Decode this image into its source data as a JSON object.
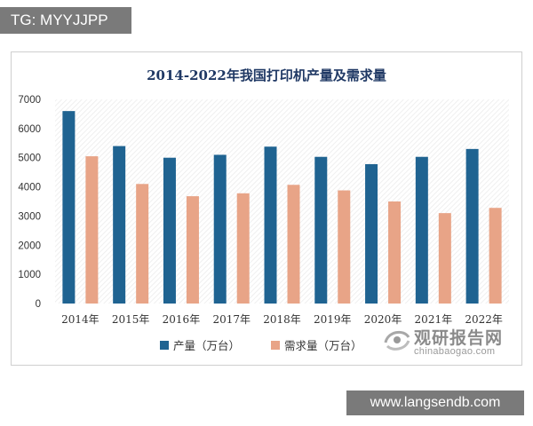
{
  "top_badge": "TG: MYYJJPP",
  "bottom_badge": "www.langsendb.com",
  "watermark": {
    "name_cn": "观研报告网",
    "url": "chinabaogao.com"
  },
  "colors": {
    "series_1": "#1f6391",
    "series_2": "#e8a487",
    "title": "#1f3864"
  },
  "chart_data": {
    "type": "bar",
    "title": "2014-2022年我国打印机产量及需求量",
    "categories": [
      "2014年",
      "2015年",
      "2016年",
      "2017年",
      "2018年",
      "2019年",
      "2020年",
      "2021年",
      "2022年"
    ],
    "series": [
      {
        "name": "产量（万台）",
        "values": [
          6600,
          5400,
          5000,
          5100,
          5380,
          5030,
          4780,
          5030,
          5300
        ]
      },
      {
        "name": "需求量（万台）",
        "values": [
          5050,
          4100,
          3680,
          3780,
          4070,
          3880,
          3500,
          3100,
          3280
        ]
      }
    ],
    "yticks": [
      0,
      1000,
      2000,
      3000,
      4000,
      5000,
      6000,
      7000
    ],
    "ylim": [
      0,
      7000
    ],
    "grid": false,
    "legend": "bottom"
  }
}
